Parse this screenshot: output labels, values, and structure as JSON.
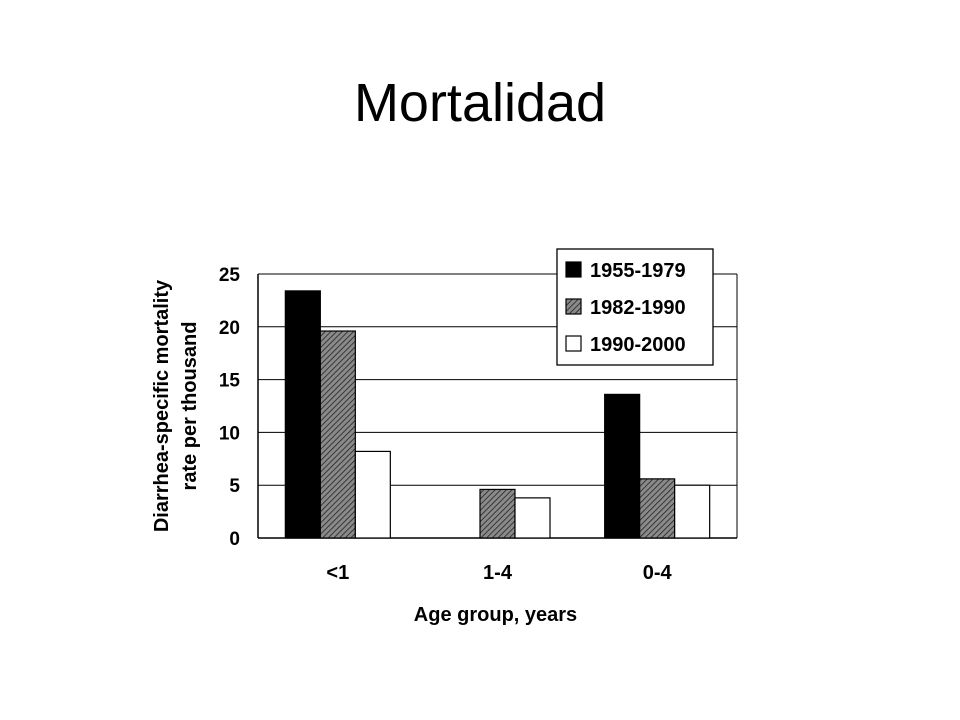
{
  "slide": {
    "title": "Mortalidad"
  },
  "chart_data": {
    "type": "bar",
    "title": "",
    "xlabel": "Age group, years",
    "ylabel": "Diarrhea-specific mortality rate per thousand",
    "ylabel_lines": [
      "Diarrhea-specific mortality",
      "rate per thousand"
    ],
    "categories": [
      "<1",
      "1-4",
      "0-4"
    ],
    "series": [
      {
        "name": "1955-1979",
        "values": [
          23.4,
          null,
          13.6
        ],
        "fill": "solid",
        "color": "#000000"
      },
      {
        "name": "1982-1990",
        "values": [
          19.6,
          4.6,
          5.6
        ],
        "fill": "hatched",
        "color": "#555555"
      },
      {
        "name": "1990-2000",
        "values": [
          8.2,
          3.8,
          5.0
        ],
        "fill": "empty",
        "color": "#ffffff"
      }
    ],
    "ylim": [
      0,
      25
    ],
    "yticks": [
      0,
      5,
      10,
      15,
      20,
      25
    ],
    "grid": true,
    "legend": "top-right"
  }
}
